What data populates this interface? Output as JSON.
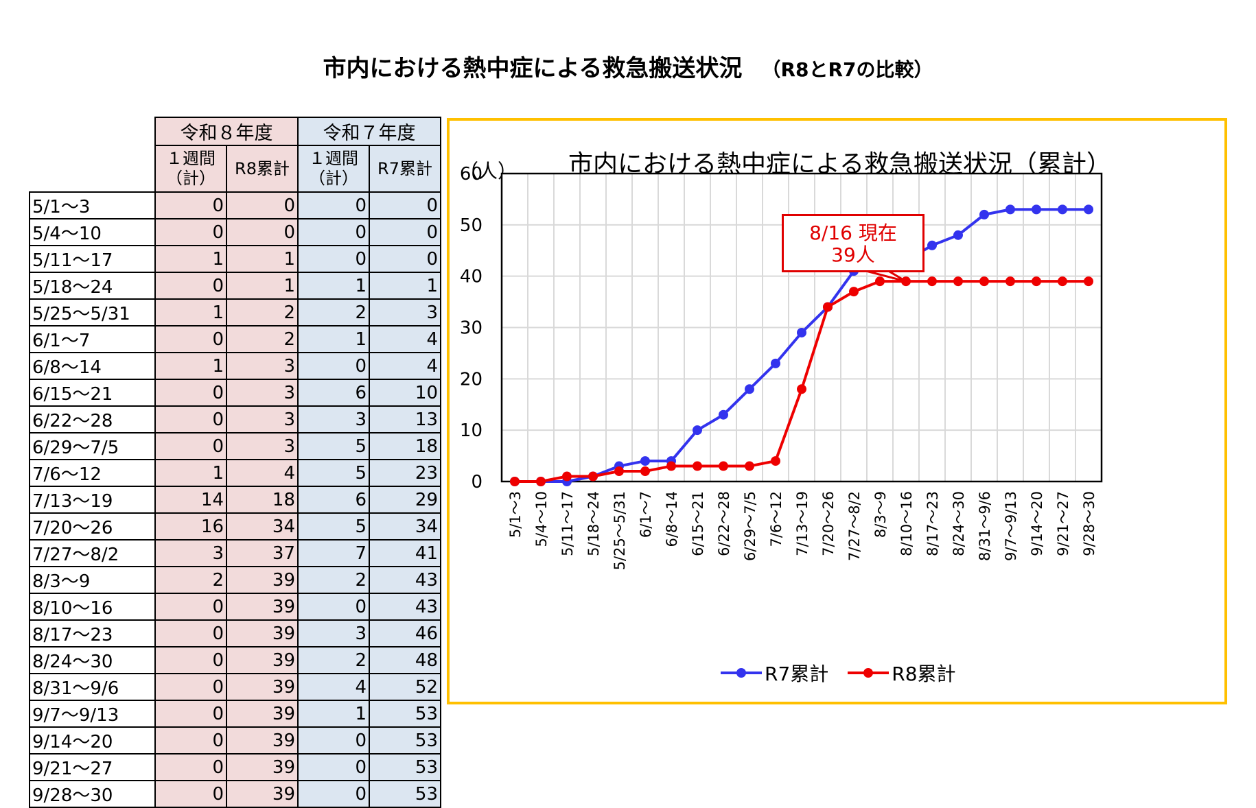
{
  "page": {
    "title": "市内における熱中症による救急搬送状況",
    "subtitle": "（R8とR7の比較）"
  },
  "table": {
    "group_headers": [
      "令和８年度",
      "令和７年度"
    ],
    "sub_headers": [
      "１週間\n（計）",
      "R8累計",
      "１週間\n（計）",
      "R7累計"
    ],
    "rows": [
      {
        "label": "5/1～3",
        "r8_week": 0,
        "r8_cum": 0,
        "r7_week": 0,
        "r7_cum": 0
      },
      {
        "label": "5/4～10",
        "r8_week": 0,
        "r8_cum": 0,
        "r7_week": 0,
        "r7_cum": 0
      },
      {
        "label": "5/11～17",
        "r8_week": 1,
        "r8_cum": 1,
        "r7_week": 0,
        "r7_cum": 0
      },
      {
        "label": "5/18～24",
        "r8_week": 0,
        "r8_cum": 1,
        "r7_week": 1,
        "r7_cum": 1
      },
      {
        "label": "5/25～5/31",
        "r8_week": 1,
        "r8_cum": 2,
        "r7_week": 2,
        "r7_cum": 3
      },
      {
        "label": "6/1～7",
        "r8_week": 0,
        "r8_cum": 2,
        "r7_week": 1,
        "r7_cum": 4
      },
      {
        "label": "6/8～14",
        "r8_week": 1,
        "r8_cum": 3,
        "r7_week": 0,
        "r7_cum": 4
      },
      {
        "label": "6/15～21",
        "r8_week": 0,
        "r8_cum": 3,
        "r7_week": 6,
        "r7_cum": 10
      },
      {
        "label": "6/22～28",
        "r8_week": 0,
        "r8_cum": 3,
        "r7_week": 3,
        "r7_cum": 13
      },
      {
        "label": "6/29～7/5",
        "r8_week": 0,
        "r8_cum": 3,
        "r7_week": 5,
        "r7_cum": 18
      },
      {
        "label": "7/6～12",
        "r8_week": 1,
        "r8_cum": 4,
        "r7_week": 5,
        "r7_cum": 23
      },
      {
        "label": "7/13～19",
        "r8_week": 14,
        "r8_cum": 18,
        "r7_week": 6,
        "r7_cum": 29
      },
      {
        "label": "7/20～26",
        "r8_week": 16,
        "r8_cum": 34,
        "r7_week": 5,
        "r7_cum": 34
      },
      {
        "label": "7/27～8/2",
        "r8_week": 3,
        "r8_cum": 37,
        "r7_week": 7,
        "r7_cum": 41
      },
      {
        "label": "8/3～9",
        "r8_week": 2,
        "r8_cum": 39,
        "r7_week": 2,
        "r7_cum": 43
      },
      {
        "label": "8/10～16",
        "r8_week": 0,
        "r8_cum": 39,
        "r7_week": 0,
        "r7_cum": 43
      },
      {
        "label": "8/17～23",
        "r8_week": 0,
        "r8_cum": 39,
        "r7_week": 3,
        "r7_cum": 46
      },
      {
        "label": "8/24～30",
        "r8_week": 0,
        "r8_cum": 39,
        "r7_week": 2,
        "r7_cum": 48
      },
      {
        "label": "8/31～9/6",
        "r8_week": 0,
        "r8_cum": 39,
        "r7_week": 4,
        "r7_cum": 52
      },
      {
        "label": "9/7～9/13",
        "r8_week": 0,
        "r8_cum": 39,
        "r7_week": 1,
        "r7_cum": 53
      },
      {
        "label": "9/14～20",
        "r8_week": 0,
        "r8_cum": 39,
        "r7_week": 0,
        "r7_cum": 53
      },
      {
        "label": "9/21～27",
        "r8_week": 0,
        "r8_cum": 39,
        "r7_week": 0,
        "r7_cum": 53
      },
      {
        "label": "9/28～30",
        "r8_week": 0,
        "r8_cum": 39,
        "r7_week": 0,
        "r7_cum": 53
      }
    ]
  },
  "chart_data": {
    "type": "line",
    "title": "市内における熱中症による救急搬送状況（累計）",
    "ylabel": "（人）",
    "xlabel": "",
    "ylim": [
      0,
      60
    ],
    "yticks": [
      0,
      10,
      20,
      30,
      40,
      50,
      60
    ],
    "grid": true,
    "legend": "bottom",
    "categories": [
      "5/1～3",
      "5/4～10",
      "5/11～17",
      "5/18～24",
      "5/25～5/31",
      "6/1～7",
      "6/8～14",
      "6/15～21",
      "6/22～28",
      "6/29～7/5",
      "7/6～12",
      "7/13～19",
      "7/20～26",
      "7/27～8/2",
      "8/3～9",
      "8/10～16",
      "8/17～23",
      "8/24～30",
      "8/31～9/6",
      "9/7～9/13",
      "9/14～20",
      "9/21～27",
      "9/28～30"
    ],
    "series": [
      {
        "name": "R7累計",
        "color": "#3333ee",
        "values": [
          0,
          0,
          0,
          1,
          3,
          4,
          4,
          10,
          13,
          18,
          23,
          29,
          34,
          41,
          43,
          43,
          46,
          48,
          52,
          53,
          53,
          53,
          53
        ]
      },
      {
        "name": "R8累計",
        "color": "#ee0000",
        "values": [
          0,
          0,
          1,
          1,
          2,
          2,
          3,
          3,
          3,
          3,
          4,
          18,
          34,
          37,
          39,
          39,
          39,
          39,
          39,
          39,
          39,
          39,
          39
        ]
      }
    ],
    "annotation": {
      "line1": "8/16 現在",
      "line2": "39人",
      "target_category": "8/10～16",
      "color": "#e00000"
    }
  }
}
